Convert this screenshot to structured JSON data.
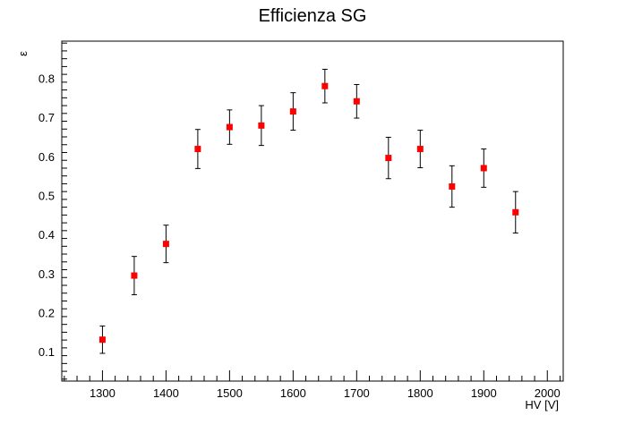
{
  "chart_data": {
    "type": "scatter",
    "title": "Efficienza SG",
    "xlabel": "HV [V]",
    "ylabel": "ε",
    "xlim": [
      1236,
      2025
    ],
    "ylim": [
      0.025,
      0.895
    ],
    "x_ticks": [
      1300,
      1400,
      1500,
      1600,
      1700,
      1800,
      1900,
      2000
    ],
    "y_ticks": [
      0.1,
      0.2,
      0.3,
      0.4,
      0.5,
      0.6,
      0.7,
      0.8
    ],
    "grid": false,
    "legend": "none",
    "marker_color": "#ff0000",
    "errorbar_color": "#000000",
    "series": [
      {
        "x": [
          1300,
          1350,
          1400,
          1450,
          1500,
          1550,
          1600,
          1650,
          1700,
          1750,
          1800,
          1850,
          1900,
          1950
        ],
        "y": [
          0.131,
          0.295,
          0.376,
          0.619,
          0.675,
          0.679,
          0.715,
          0.78,
          0.741,
          0.596,
          0.619,
          0.523,
          0.57,
          0.457
        ],
        "yerr": [
          0.035,
          0.049,
          0.048,
          0.05,
          0.044,
          0.051,
          0.048,
          0.043,
          0.043,
          0.053,
          0.048,
          0.053,
          0.049,
          0.053
        ]
      }
    ]
  }
}
